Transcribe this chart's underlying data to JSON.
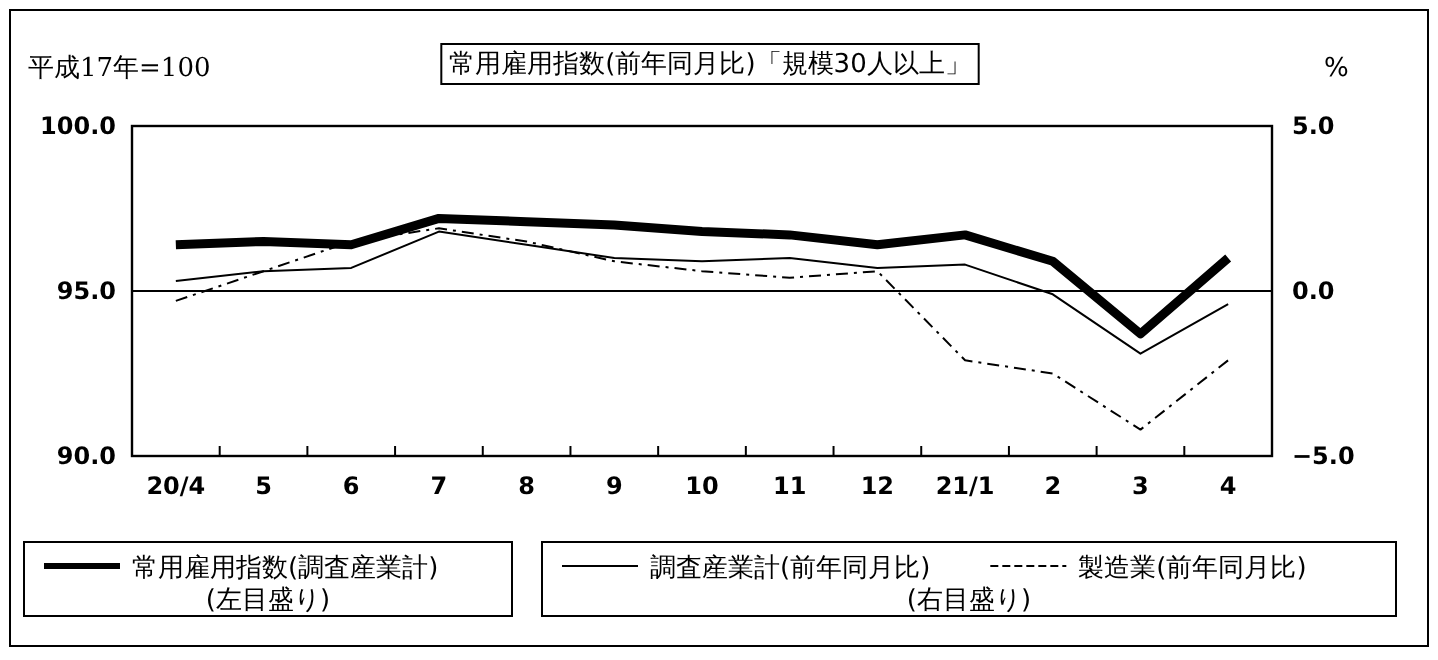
{
  "chart_data": {
    "type": "line",
    "title": "常用雇用指数(前年同月比)「規模30人以上」",
    "ylabel": "平成17年=100",
    "y2label": "%",
    "categories": [
      "20/4",
      "5",
      "6",
      "7",
      "8",
      "9",
      "10",
      "11",
      "12",
      "21/1",
      "2",
      "3",
      "4"
    ],
    "series": [
      {
        "name": "常用雇用指数(調査産業計)",
        "color": "#000000",
        "axis": "y",
        "line_style": "solid",
        "values": [
          96.4,
          96.5,
          96.4,
          97.2,
          97.1,
          97.0,
          96.8,
          96.7,
          96.4,
          96.7,
          95.9,
          93.7,
          96.0
        ]
      },
      {
        "name": "調査産業計(前年同月比)",
        "color": "#000000",
        "axis": "y2",
        "line_style": "solid",
        "values": [
          0.3,
          0.6,
          0.7,
          1.8,
          1.4,
          1.0,
          0.9,
          1.0,
          0.7,
          0.8,
          -0.1,
          -1.9,
          -0.4
        ]
      },
      {
        "name": "製造業(前年同月比)",
        "color": "#000000",
        "axis": "y2",
        "line_style": "dashed",
        "values": [
          -0.3,
          0.6,
          1.5,
          1.9,
          1.5,
          0.9,
          0.6,
          0.4,
          0.6,
          -2.1,
          -2.5,
          -4.2,
          -2.1
        ]
      }
    ],
    "ylim": [
      90,
      100
    ],
    "yticks": [
      {
        "value": 90,
        "label": "90.0"
      },
      {
        "value": 95,
        "label": "95.0"
      },
      {
        "value": 100,
        "label": "100.0"
      }
    ],
    "y2lim": [
      -5,
      5
    ],
    "y2ticks": [
      {
        "value": -5,
        "label": "−5.0"
      },
      {
        "value": 0,
        "label": "0.0"
      },
      {
        "value": 5,
        "label": "5.0"
      }
    ],
    "ref_lines": [
      {
        "axis": "y2",
        "value": 0,
        "color": "#000000"
      }
    ],
    "legend": "bottom",
    "marker": "none",
    "annotations": [
      "(左目盛り)",
      "(右目盛り)"
    ]
  }
}
